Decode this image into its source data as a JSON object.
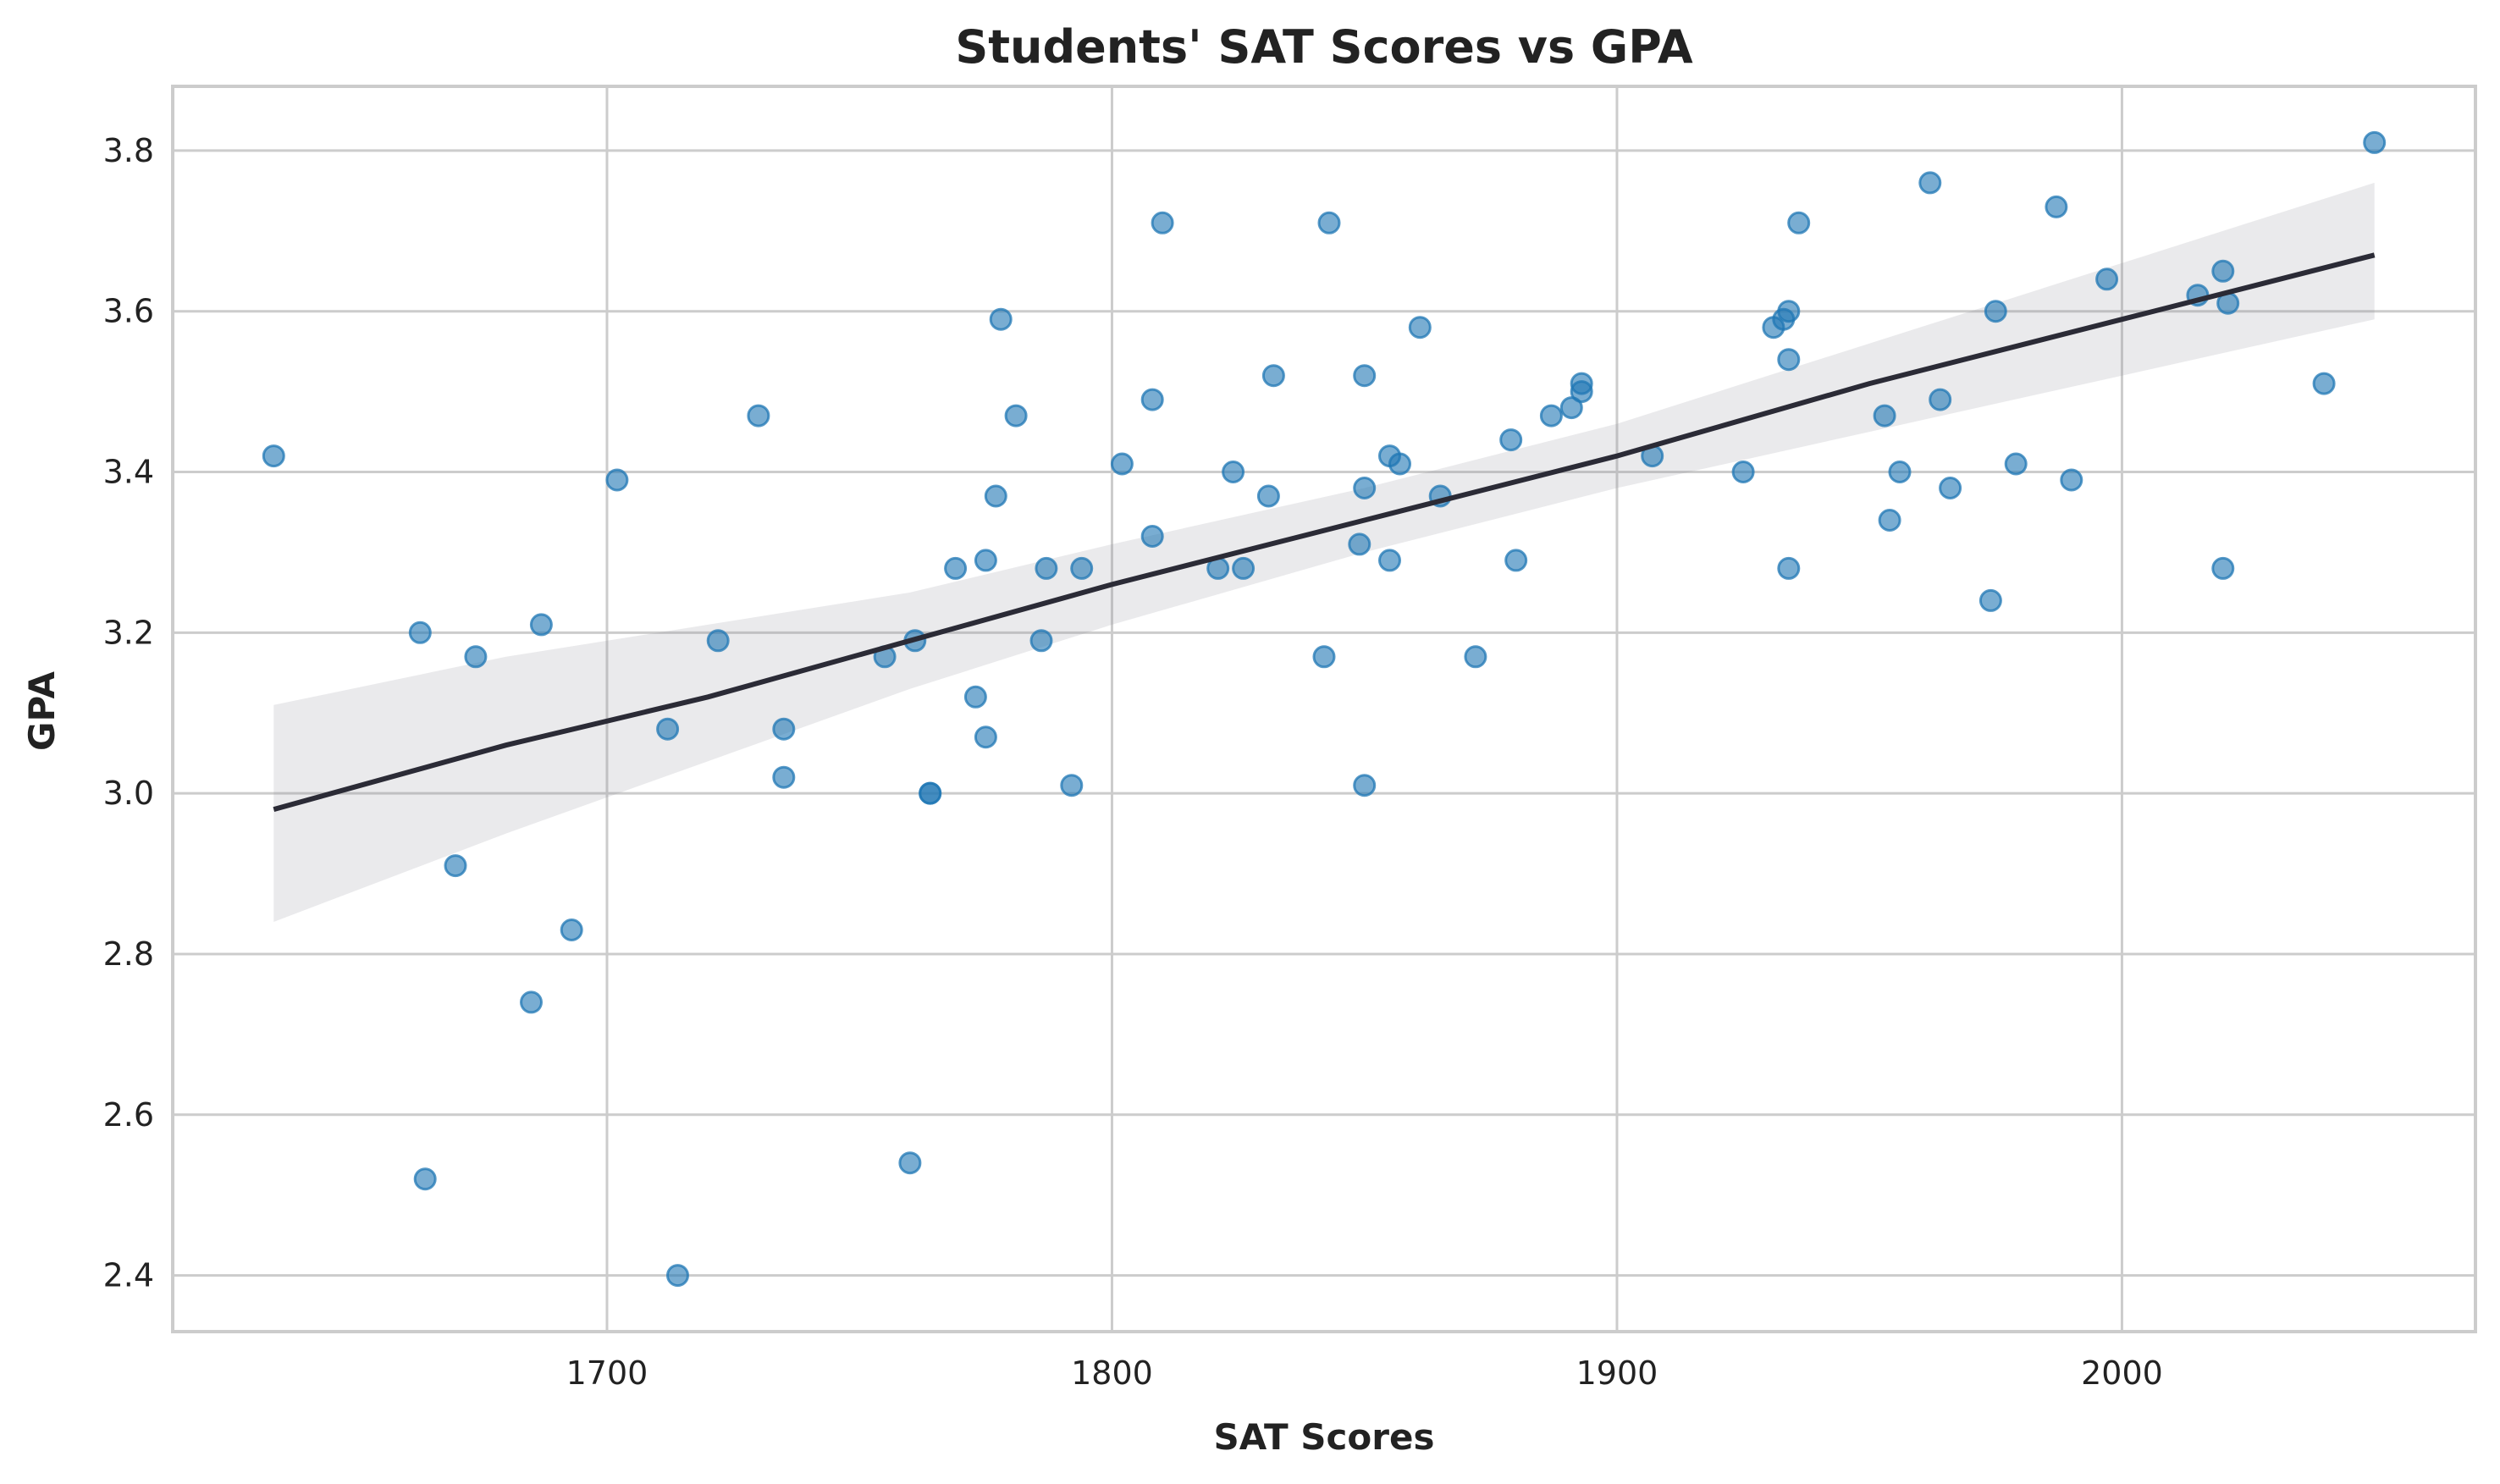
{
  "chart_data": {
    "type": "scatter",
    "title": "Students' SAT Scores vs GPA",
    "xlabel": "SAT Scores",
    "ylabel": "GPA",
    "xlim": [
      1614,
      2070
    ],
    "ylim": [
      2.33,
      3.88
    ],
    "xticks": [
      1700,
      1800,
      1900,
      2000
    ],
    "xtick_labels": [
      "1700",
      "1800",
      "1900",
      "2000"
    ],
    "yticks": [
      2.4,
      2.6,
      2.8,
      3.0,
      3.2,
      3.4,
      3.6,
      3.8
    ],
    "ytick_labels": [
      "2.4",
      "2.6",
      "2.8",
      "3.0",
      "3.2",
      "3.4",
      "3.6",
      "3.8"
    ],
    "grid": true,
    "colors": {
      "points": "#1f77b4",
      "fit_line": "#2b2b36",
      "ci_band": "#8c8c96",
      "grid": "#cccccc"
    },
    "points": [
      [
        1634,
        3.42
      ],
      [
        1663,
        3.2
      ],
      [
        1664,
        2.52
      ],
      [
        1670,
        2.91
      ],
      [
        1674,
        3.17
      ],
      [
        1685,
        2.74
      ],
      [
        1687,
        3.21
      ],
      [
        1693,
        2.83
      ],
      [
        1702,
        3.39
      ],
      [
        1712,
        3.08
      ],
      [
        1714,
        2.4
      ],
      [
        1722,
        3.19
      ],
      [
        1730,
        3.47
      ],
      [
        1735,
        3.08
      ],
      [
        1735,
        3.02
      ],
      [
        1755,
        3.17
      ],
      [
        1760,
        2.54
      ],
      [
        1761,
        3.19
      ],
      [
        1764,
        3.0
      ],
      [
        1764,
        3.0
      ],
      [
        1769,
        3.28
      ],
      [
        1773,
        3.12
      ],
      [
        1775,
        3.29
      ],
      [
        1775,
        3.07
      ],
      [
        1777,
        3.37
      ],
      [
        1778,
        3.59
      ],
      [
        1781,
        3.47
      ],
      [
        1786,
        3.19
      ],
      [
        1787,
        3.28
      ],
      [
        1792,
        3.01
      ],
      [
        1794,
        3.28
      ],
      [
        1802,
        3.41
      ],
      [
        1808,
        3.49
      ],
      [
        1808,
        3.32
      ],
      [
        1810,
        3.71
      ],
      [
        1821,
        3.28
      ],
      [
        1824,
        3.4
      ],
      [
        1826,
        3.28
      ],
      [
        1831,
        3.37
      ],
      [
        1832,
        3.52
      ],
      [
        1842,
        3.17
      ],
      [
        1843,
        3.71
      ],
      [
        1849,
        3.31
      ],
      [
        1850,
        3.52
      ],
      [
        1850,
        3.38
      ],
      [
        1850,
        3.01
      ],
      [
        1855,
        3.42
      ],
      [
        1855,
        3.29
      ],
      [
        1857,
        3.41
      ],
      [
        1861,
        3.58
      ],
      [
        1865,
        3.37
      ],
      [
        1872,
        3.17
      ],
      [
        1879,
        3.44
      ],
      [
        1880,
        3.29
      ],
      [
        1887,
        3.47
      ],
      [
        1891,
        3.48
      ],
      [
        1893,
        3.51
      ],
      [
        1893,
        3.5
      ],
      [
        1907,
        3.42
      ],
      [
        1925,
        3.4
      ],
      [
        1931,
        3.58
      ],
      [
        1933,
        3.59
      ],
      [
        1934,
        3.6
      ],
      [
        1934,
        3.54
      ],
      [
        1934,
        3.28
      ],
      [
        1936,
        3.71
      ],
      [
        1953,
        3.47
      ],
      [
        1954,
        3.34
      ],
      [
        1956,
        3.4
      ],
      [
        1962,
        3.76
      ],
      [
        1964,
        3.49
      ],
      [
        1966,
        3.38
      ],
      [
        1974,
        3.24
      ],
      [
        1975,
        3.6
      ],
      [
        1979,
        3.41
      ],
      [
        1987,
        3.73
      ],
      [
        1990,
        3.39
      ],
      [
        1997,
        3.64
      ],
      [
        2015,
        3.62
      ],
      [
        2020,
        3.65
      ],
      [
        2020,
        3.28
      ],
      [
        2021,
        3.61
      ],
      [
        2040,
        3.51
      ],
      [
        2050,
        3.81
      ]
    ],
    "regression": {
      "x": [
        1634,
        1680,
        1720,
        1760,
        1800,
        1850,
        1900,
        1950,
        2000,
        2050
      ],
      "y": [
        2.98,
        3.06,
        3.12,
        3.19,
        3.26,
        3.34,
        3.42,
        3.51,
        3.59,
        3.67
      ],
      "ci_lower": [
        2.84,
        2.95,
        3.04,
        3.13,
        3.21,
        3.3,
        3.38,
        3.45,
        3.52,
        3.59
      ],
      "ci_upper": [
        3.11,
        3.17,
        3.21,
        3.25,
        3.31,
        3.38,
        3.46,
        3.56,
        3.66,
        3.76
      ]
    }
  }
}
